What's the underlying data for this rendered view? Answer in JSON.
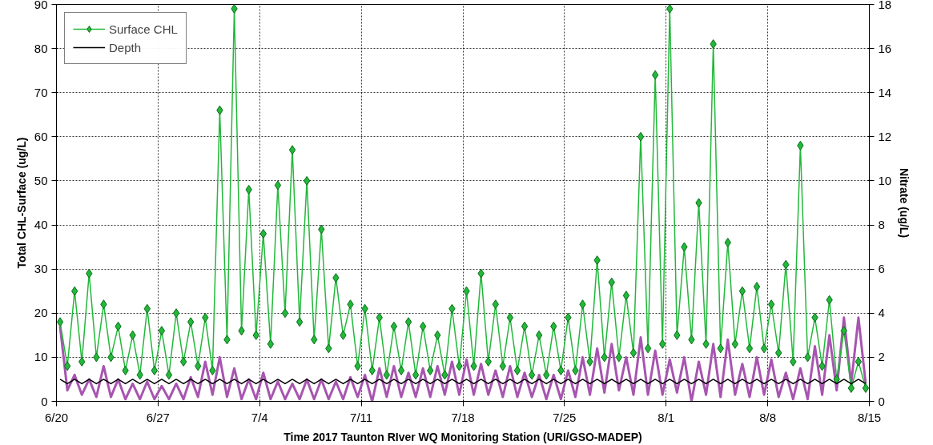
{
  "chart_data": {
    "type": "line",
    "xlabel": "Time 2017 Taunton RIver WQ Monitoring Station (URI/GSO-MADEP)",
    "ylabel": "Total CHL-Surface (ug/L)",
    "y2label": "Nitrate (ug/L)",
    "x": [
      "2017-06-20T06:00",
      "2017-06-20T18:00",
      "2017-06-21T06:00",
      "2017-06-21T18:00",
      "2017-06-22T06:00",
      "2017-06-22T18:00",
      "2017-06-23T06:00",
      "2017-06-23T18:00",
      "2017-06-24T06:00",
      "2017-06-24T18:00",
      "2017-06-25T06:00",
      "2017-06-25T18:00",
      "2017-06-26T06:00",
      "2017-06-26T18:00",
      "2017-06-27T06:00",
      "2017-06-27T18:00",
      "2017-06-28T06:00",
      "2017-06-28T18:00",
      "2017-06-29T06:00",
      "2017-06-29T18:00",
      "2017-06-30T06:00",
      "2017-06-30T18:00",
      "2017-07-01T06:00",
      "2017-07-01T18:00",
      "2017-07-02T06:00",
      "2017-07-02T18:00",
      "2017-07-03T06:00",
      "2017-07-03T18:00",
      "2017-07-04T06:00",
      "2017-07-04T18:00",
      "2017-07-05T06:00",
      "2017-07-05T18:00",
      "2017-07-06T06:00",
      "2017-07-06T18:00",
      "2017-07-07T06:00",
      "2017-07-07T18:00",
      "2017-07-08T06:00",
      "2017-07-08T18:00",
      "2017-07-09T06:00",
      "2017-07-09T18:00",
      "2017-07-10T06:00",
      "2017-07-10T18:00",
      "2017-07-11T06:00",
      "2017-07-11T18:00",
      "2017-07-12T06:00",
      "2017-07-12T18:00",
      "2017-07-13T06:00",
      "2017-07-13T18:00",
      "2017-07-14T06:00",
      "2017-07-14T18:00",
      "2017-07-15T06:00",
      "2017-07-15T18:00",
      "2017-07-16T06:00",
      "2017-07-16T18:00",
      "2017-07-17T06:00",
      "2017-07-17T18:00",
      "2017-07-18T06:00",
      "2017-07-18T18:00",
      "2017-07-19T06:00",
      "2017-07-19T18:00",
      "2017-07-20T06:00",
      "2017-07-20T18:00",
      "2017-07-21T06:00",
      "2017-07-21T18:00",
      "2017-07-22T06:00",
      "2017-07-22T18:00",
      "2017-07-23T06:00",
      "2017-07-23T18:00",
      "2017-07-24T06:00",
      "2017-07-24T18:00",
      "2017-07-25T06:00",
      "2017-07-25T18:00",
      "2017-07-26T06:00",
      "2017-07-26T18:00",
      "2017-07-27T06:00",
      "2017-07-27T18:00",
      "2017-07-28T06:00",
      "2017-07-28T18:00",
      "2017-07-29T06:00",
      "2017-07-29T18:00",
      "2017-07-30T06:00",
      "2017-07-30T18:00",
      "2017-07-31T06:00",
      "2017-07-31T18:00",
      "2017-08-01T06:00",
      "2017-08-01T18:00",
      "2017-08-02T06:00",
      "2017-08-02T18:00",
      "2017-08-03T06:00",
      "2017-08-03T18:00",
      "2017-08-04T06:00",
      "2017-08-04T18:00",
      "2017-08-05T06:00",
      "2017-08-05T18:00",
      "2017-08-06T06:00",
      "2017-08-06T18:00",
      "2017-08-07T06:00",
      "2017-08-07T18:00",
      "2017-08-08T06:00",
      "2017-08-08T18:00",
      "2017-08-09T06:00",
      "2017-08-09T18:00",
      "2017-08-10T06:00",
      "2017-08-10T18:00",
      "2017-08-11T06:00",
      "2017-08-11T18:00",
      "2017-08-12T06:00",
      "2017-08-12T18:00",
      "2017-08-13T06:00",
      "2017-08-13T18:00",
      "2017-08-14T06:00",
      "2017-08-14T18:00"
    ],
    "series": [
      {
        "name": "Surface CHL",
        "color": "#22b83a",
        "marker": "diamond",
        "values": [
          18,
          8,
          25,
          9,
          29,
          10,
          22,
          10,
          17,
          7,
          15,
          6,
          21,
          7,
          16,
          6,
          20,
          9,
          18,
          8,
          19,
          7,
          66,
          14,
          89,
          16,
          48,
          15,
          38,
          13,
          49,
          20,
          57,
          18,
          50,
          14,
          39,
          12,
          28,
          15,
          22,
          8,
          21,
          7,
          19,
          6,
          17,
          7,
          18,
          6,
          17,
          7,
          15,
          6,
          21,
          8,
          25,
          8,
          29,
          9,
          22,
          8,
          19,
          7,
          17,
          6,
          15,
          6,
          17,
          7,
          19,
          7,
          22,
          9,
          32,
          10,
          27,
          10,
          24,
          11,
          60,
          12,
          74,
          13,
          89,
          15,
          35,
          14,
          45,
          13,
          81,
          12,
          36,
          13,
          25,
          12,
          26,
          12,
          22,
          11,
          31,
          9,
          58,
          10,
          19,
          8,
          23,
          5,
          16,
          3,
          9,
          3
        ]
      },
      {
        "name": "Depth",
        "color": "#000000",
        "marker": "none",
        "values": [
          5,
          4,
          5,
          4,
          5,
          4,
          5,
          4,
          5,
          4,
          5,
          4,
          5,
          4,
          5,
          4,
          5,
          4,
          5,
          4,
          5,
          4,
          5,
          4,
          5,
          4,
          5,
          4,
          5,
          4,
          5,
          4,
          5,
          4,
          5,
          4,
          5,
          4,
          5,
          4,
          5,
          4,
          5,
          4,
          5,
          4,
          5,
          4,
          5,
          4,
          5,
          4,
          5,
          4,
          5,
          4,
          5,
          4,
          5,
          4,
          5,
          4,
          5,
          4,
          5,
          4,
          5,
          4,
          5,
          4,
          5,
          4,
          5,
          4,
          5,
          4,
          5,
          4,
          5,
          4,
          5,
          4,
          5,
          4,
          5,
          4,
          5,
          4,
          5,
          4,
          5,
          4,
          5,
          4,
          5,
          4,
          5,
          4,
          5,
          4,
          5,
          4,
          5,
          4,
          5,
          4,
          5,
          4,
          5,
          4,
          5,
          4
        ]
      },
      {
        "color": "#a755b0",
        "marker": "none",
        "axis": "y2",
        "values": [
          3.4,
          0.5,
          1.2,
          0.3,
          1.0,
          0.2,
          1.6,
          0.2,
          1.0,
          0.1,
          0.8,
          0.1,
          0.9,
          0.1,
          0.7,
          0.1,
          0.8,
          0.1,
          1.1,
          0.2,
          1.8,
          0.3,
          2.0,
          0.2,
          1.5,
          0.1,
          1.0,
          0.1,
          1.3,
          0.1,
          0.9,
          0.1,
          0.8,
          0.1,
          1.0,
          0.1,
          1.0,
          0.1,
          0.9,
          0.1,
          1.1,
          0.2,
          1.2,
          0.0,
          1.5,
          0.2,
          1.6,
          0.2,
          1.3,
          0.2,
          1.5,
          0.2,
          1.6,
          0.3,
          1.8,
          0.3,
          1.9,
          0.3,
          1.7,
          0.3,
          1.4,
          0.2,
          1.6,
          0.2,
          1.3,
          0.2,
          1.2,
          0.1,
          1.2,
          0.1,
          1.4,
          0.2,
          2.0,
          0.3,
          2.4,
          0.4,
          2.6,
          0.5,
          2.0,
          0.3,
          2.9,
          0.3,
          2.3,
          0.3,
          1.9,
          0.4,
          2.0,
          0.0,
          1.8,
          0.3,
          2.6,
          0.2,
          2.8,
          0.3,
          1.7,
          0.2,
          2.0,
          0.3,
          1.9,
          0.2,
          1.3,
          0.1,
          1.5,
          0.1,
          2.5,
          0.3,
          3.0,
          0.5,
          3.8,
          0.8,
          3.8,
          0.8
        ]
      }
    ],
    "xlim": [
      "2017-06-20",
      "2017-08-15"
    ],
    "xticks": [
      {
        "value": "2017-06-20",
        "label": "6/20"
      },
      {
        "value": "2017-06-27",
        "label": "6/27"
      },
      {
        "value": "2017-07-04",
        "label": "7/4"
      },
      {
        "value": "2017-07-11",
        "label": "7/11"
      },
      {
        "value": "2017-07-18",
        "label": "7/18"
      },
      {
        "value": "2017-07-25",
        "label": "7/25"
      },
      {
        "value": "2017-08-01",
        "label": "8/1"
      },
      {
        "value": "2017-08-08",
        "label": "8/8"
      },
      {
        "value": "2017-08-15",
        "label": "8/15"
      }
    ],
    "ylim": [
      0,
      90
    ],
    "yticks": [
      0,
      10,
      20,
      30,
      40,
      50,
      60,
      70,
      80,
      90
    ],
    "y2lim": [
      0,
      18
    ],
    "y2ticks": [
      0,
      2,
      4,
      6,
      8,
      10,
      12,
      14,
      16,
      18
    ],
    "grid": true,
    "legend": "top left",
    "line_style": "solid"
  }
}
